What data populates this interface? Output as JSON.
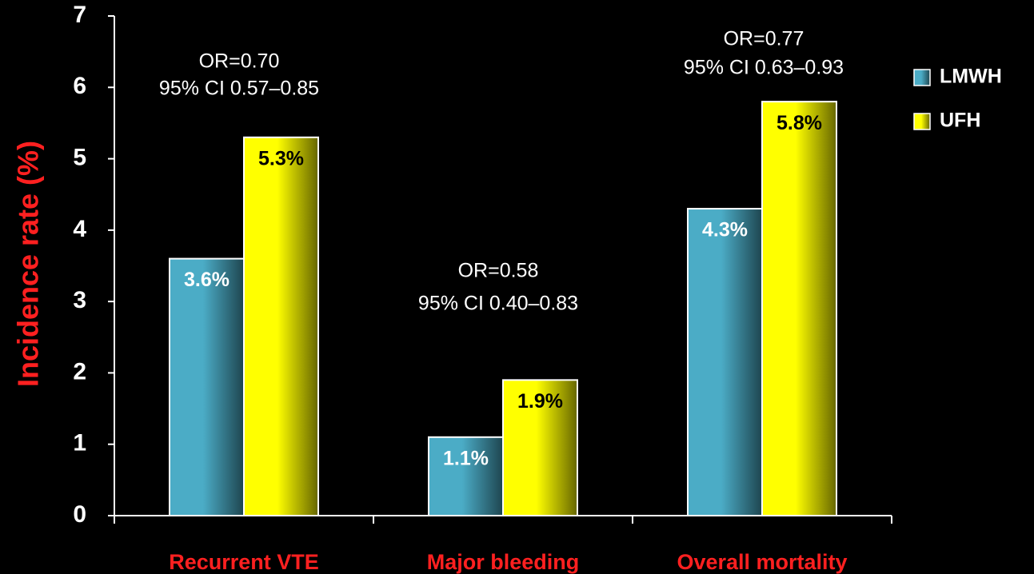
{
  "chart_data": {
    "type": "bar",
    "y_label": "Incidence rate (%)",
    "categories": [
      "Recurrent VTE",
      "Major bleeding",
      "Overall mortality"
    ],
    "series": [
      {
        "name": "LMWH",
        "color": "#4bacc6",
        "values": [
          3.6,
          1.1,
          4.3
        ],
        "value_labels": [
          "3.6%",
          "1.1%",
          "4.3%"
        ]
      },
      {
        "name": "UFH",
        "color": "#ffff00",
        "values": [
          5.3,
          1.9,
          5.8
        ],
        "value_labels": [
          "5.3%",
          "1.9%",
          "5.8%"
        ]
      }
    ],
    "annotations": [
      [
        "OR=0.70",
        "95% CI 0.57–0.85"
      ],
      [
        "OR=0.58",
        "95% CI 0.40–0.83"
      ],
      [
        "OR=0.77",
        "95% CI 0.63–0.93"
      ]
    ],
    "ylim": [
      0,
      7
    ],
    "yticks": [
      0,
      1,
      2,
      3,
      4,
      5,
      6,
      7
    ],
    "legend": "right"
  }
}
